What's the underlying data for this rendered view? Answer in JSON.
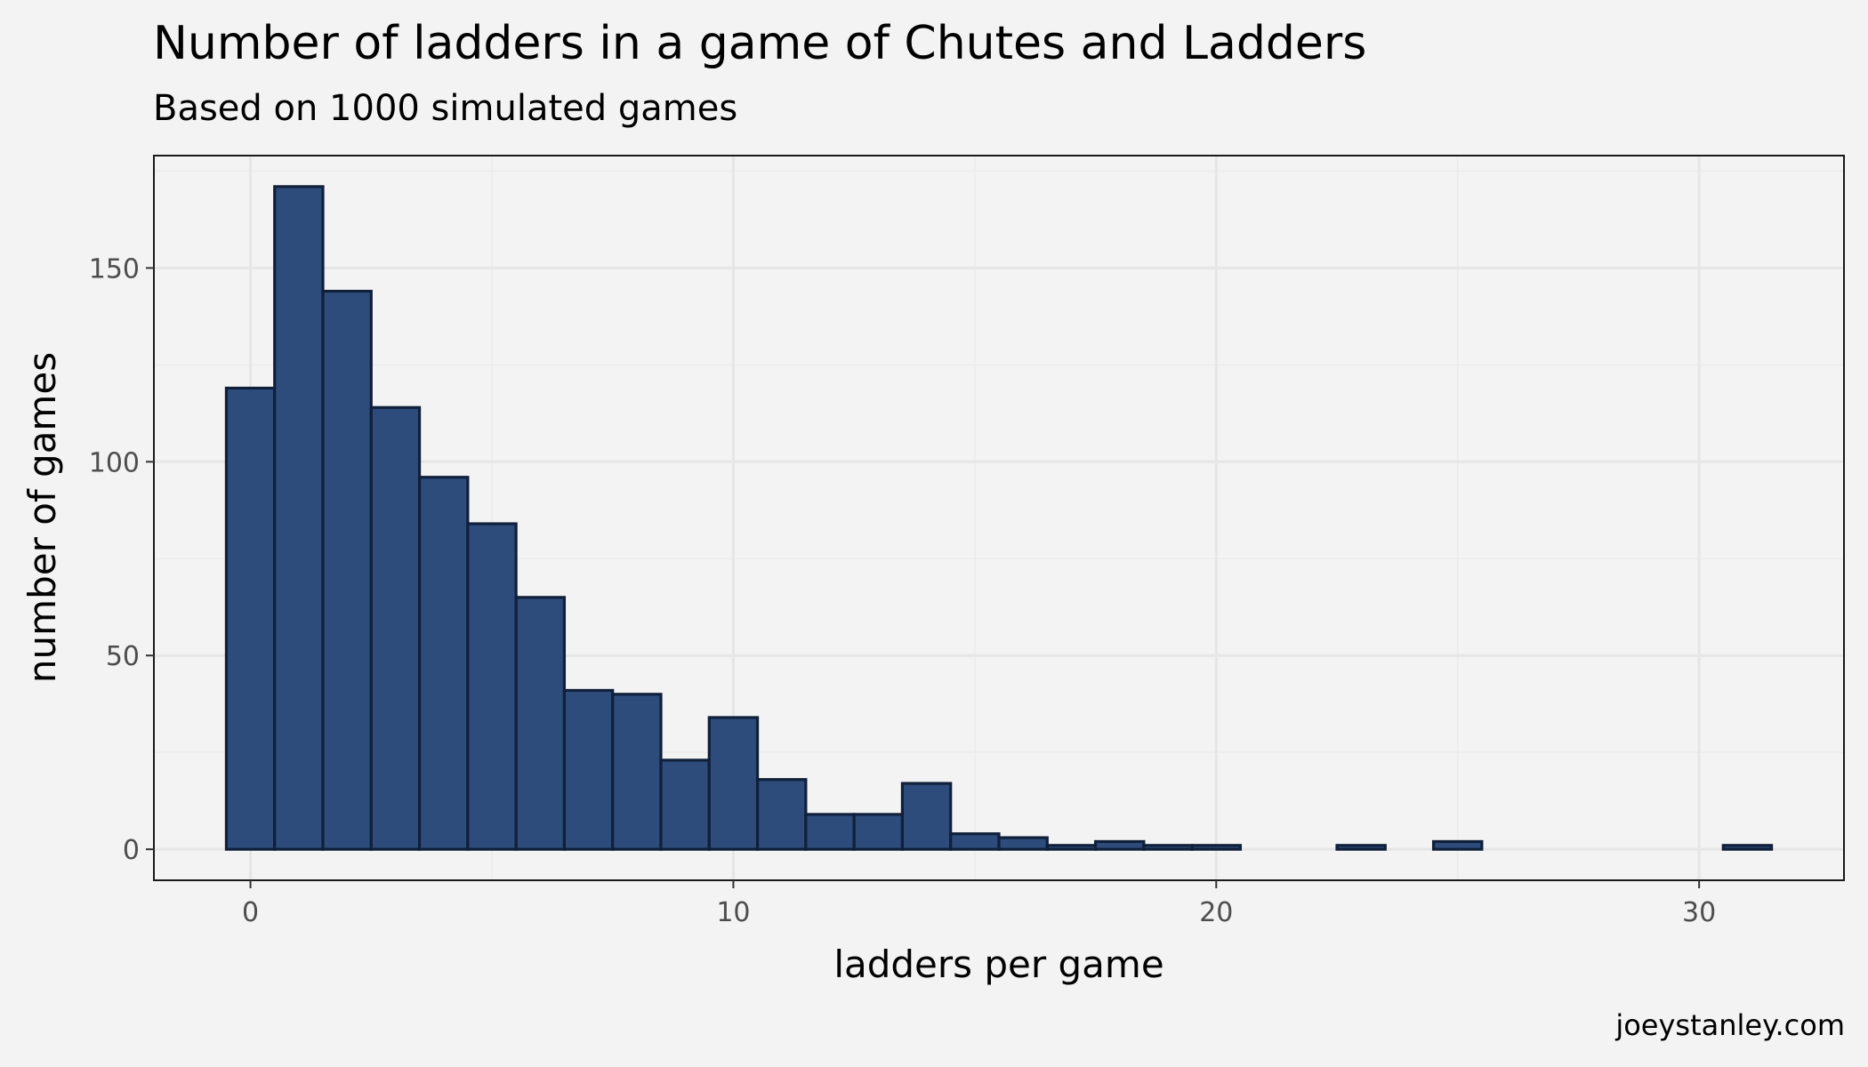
{
  "chart_data": {
    "type": "bar",
    "title": "Number of ladders in a game of Chutes and Ladders",
    "subtitle": "Based on 1000 simulated games",
    "xlabel": "ladders per game",
    "ylabel": "number of games",
    "caption": "joeystanley.com",
    "bin_width": 1,
    "x": [
      0,
      1,
      2,
      3,
      4,
      5,
      6,
      7,
      8,
      9,
      10,
      11,
      12,
      13,
      14,
      15,
      16,
      17,
      18,
      19,
      20,
      21,
      22,
      23,
      24,
      25,
      26,
      27,
      28,
      29,
      30,
      31
    ],
    "values": [
      119,
      171,
      144,
      114,
      96,
      84,
      65,
      41,
      40,
      23,
      34,
      18,
      9,
      9,
      17,
      4,
      3,
      1,
      2,
      1,
      1,
      0,
      0,
      1,
      0,
      2,
      0,
      0,
      0,
      0,
      0,
      1
    ],
    "xlim": [
      -2,
      33
    ],
    "ylim": [
      -8,
      179
    ],
    "xticks": [
      0,
      10,
      20,
      30
    ],
    "xtick_labels": [
      "0",
      "10",
      "20",
      "30"
    ],
    "yticks": [
      0,
      50,
      100,
      150
    ],
    "ytick_labels": [
      "0",
      "50",
      "100",
      "150"
    ],
    "grid": true,
    "bar_color": "#2d4c7c",
    "bar_outline": "#10203a",
    "background": "#f3f3f3"
  }
}
